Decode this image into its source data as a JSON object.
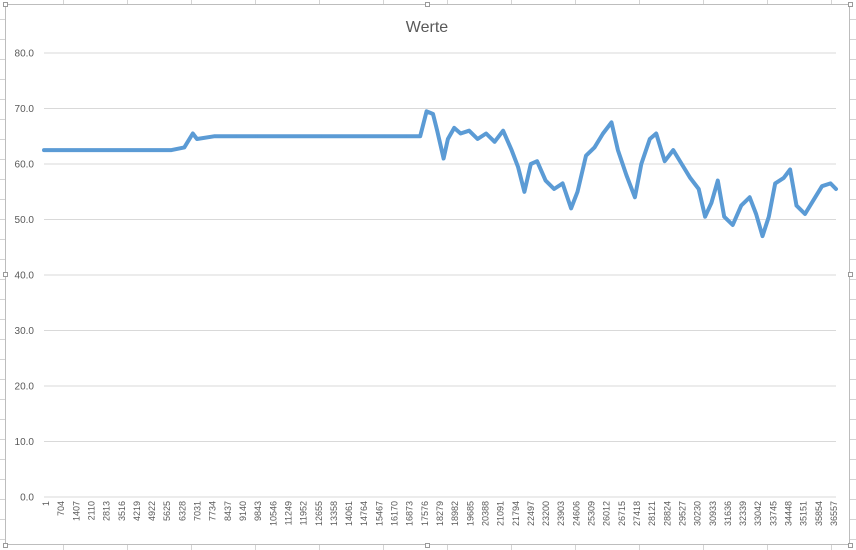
{
  "chart_data": {
    "type": "line",
    "title": "Werte",
    "xlabel": "",
    "ylabel": "",
    "ylim": [
      0,
      80
    ],
    "y_ticks": [
      "0.0",
      "10.0",
      "20.0",
      "30.0",
      "40.0",
      "50.0",
      "60.0",
      "70.0",
      "80.0"
    ],
    "x_range": [
      1,
      37260
    ],
    "x_tick_labels": [
      "1",
      "704",
      "1407",
      "2110",
      "2813",
      "3516",
      "4219",
      "4922",
      "5625",
      "6328",
      "7031",
      "7734",
      "8437",
      "9140",
      "9843",
      "10546",
      "11249",
      "11952",
      "12655",
      "13358",
      "14061",
      "14764",
      "15467",
      "16170",
      "16873",
      "17576",
      "18279",
      "18982",
      "19685",
      "20388",
      "21091",
      "21794",
      "22497",
      "23200",
      "23903",
      "24606",
      "25309",
      "26012",
      "26715",
      "27418",
      "28121",
      "28824",
      "29527",
      "30230",
      "30933",
      "31636",
      "32339",
      "33042",
      "33745",
      "34448",
      "35151",
      "35854",
      "36557"
    ],
    "grid": "horizontal",
    "legend": "none",
    "series_color": "#5b9bd5",
    "series": [
      {
        "x": [
          1,
          1000,
          2000,
          3000,
          4000,
          5000,
          6000,
          6600,
          7000,
          7200,
          8000,
          9000,
          10000,
          11000,
          12000,
          13000,
          14000,
          15000,
          16000,
          17000,
          17700,
          18000,
          18300,
          18500,
          18800,
          19000,
          19300,
          19600,
          20000,
          20400,
          20800,
          21200,
          21600,
          22000,
          22300,
          22600,
          22900,
          23200,
          23600,
          24000,
          24400,
          24800,
          25100,
          25500,
          25900,
          26300,
          26700,
          27000,
          27400,
          27800,
          28100,
          28500,
          28800,
          29200,
          29600,
          30000,
          30400,
          30800,
          31100,
          31400,
          31700,
          32000,
          32400,
          32800,
          33200,
          33500,
          33800,
          34100,
          34400,
          34800,
          35100,
          35400,
          35800,
          36200,
          36600,
          37000,
          37260
        ],
        "values": [
          62.5,
          62.5,
          62.5,
          62.5,
          62.5,
          62.5,
          62.5,
          63.0,
          65.5,
          64.5,
          65.0,
          65.0,
          65.0,
          65.0,
          65.0,
          65.0,
          65.0,
          65.0,
          65.0,
          65.0,
          65.0,
          69.5,
          69.0,
          66.0,
          61.0,
          64.5,
          66.5,
          65.5,
          66.0,
          64.5,
          65.5,
          64.0,
          66.0,
          62.5,
          59.5,
          55.0,
          60.0,
          60.5,
          57.0,
          55.5,
          56.5,
          52.0,
          55.0,
          61.5,
          63.0,
          65.5,
          67.5,
          62.5,
          58.0,
          54.0,
          60.0,
          64.5,
          65.5,
          60.5,
          62.5,
          60.0,
          57.5,
          55.5,
          50.5,
          53.0,
          57.0,
          50.5,
          49.0,
          52.5,
          54.0,
          51.0,
          47.0,
          50.5,
          56.5,
          57.5,
          59.0,
          52.5,
          51.0,
          53.5,
          56.0,
          56.5,
          55.5
        ]
      }
    ]
  }
}
